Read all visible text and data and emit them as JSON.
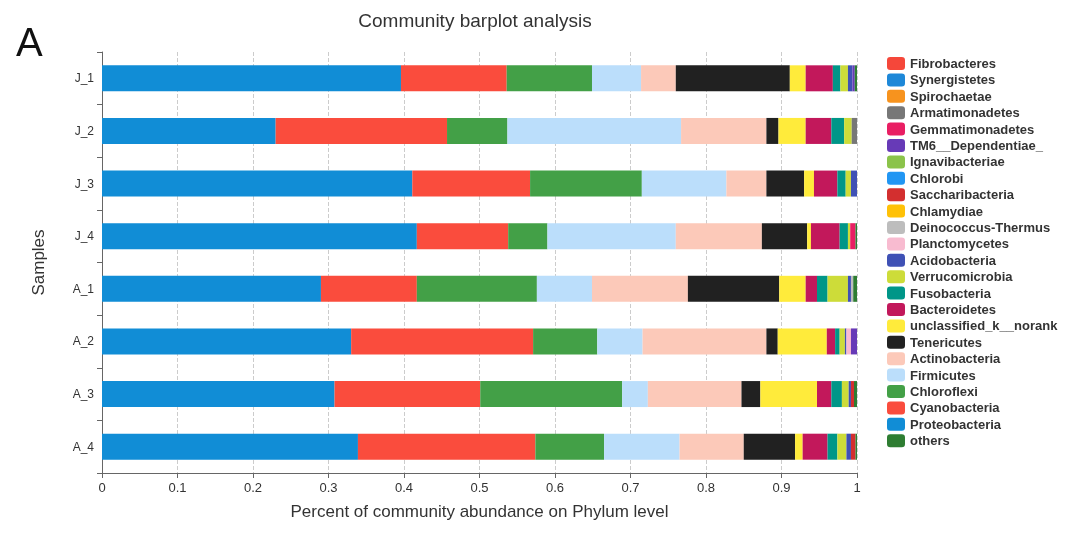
{
  "chart_data": {
    "type": "bar",
    "orientation": "horizontal",
    "stacked": true,
    "title": "Community barplot analysis",
    "xlabel": "Percent of community abundance on Phylum level",
    "ylabel": "Samples",
    "annotations": [
      "A"
    ],
    "categories": [
      "J_1",
      "J_2",
      "J_3",
      "J_4",
      "A_1",
      "A_2",
      "A_3",
      "A_4"
    ],
    "xlim": [
      0,
      1
    ],
    "xticks": [
      0,
      0.1,
      0.2,
      0.3,
      0.4,
      0.5,
      0.6,
      0.7,
      0.8,
      0.9,
      1
    ],
    "grid": "x",
    "legend": "right",
    "series": [
      {
        "name": "Proteobacteria",
        "color": "#118dd6",
        "values": [
          0.396,
          0.23,
          0.411,
          0.417,
          0.29,
          0.33,
          0.308,
          0.339
        ]
      },
      {
        "name": "Cyanobacteria",
        "color": "#fa4c3d",
        "values": [
          0.14,
          0.227,
          0.156,
          0.121,
          0.127,
          0.241,
          0.193,
          0.235
        ]
      },
      {
        "name": "Chloroflexi",
        "color": "#43a047",
        "values": [
          0.113,
          0.08,
          0.148,
          0.052,
          0.159,
          0.085,
          0.188,
          0.091
        ]
      },
      {
        "name": "Firmicutes",
        "color": "#bbdefb",
        "values": [
          0.065,
          0.23,
          0.112,
          0.17,
          0.073,
          0.06,
          0.034,
          0.1
        ]
      },
      {
        "name": "Actinobacteria",
        "color": "#fcc9b9",
        "values": [
          0.046,
          0.113,
          0.053,
          0.114,
          0.127,
          0.164,
          0.124,
          0.085
        ]
      },
      {
        "name": "Tenericutes",
        "color": "#212121",
        "values": [
          0.151,
          0.016,
          0.05,
          0.06,
          0.121,
          0.015,
          0.025,
          0.068
        ]
      },
      {
        "name": "unclassified_k__norank",
        "color": "#ffeb3b",
        "values": [
          0.021,
          0.036,
          0.013,
          0.005,
          0.035,
          0.065,
          0.075,
          0.01
        ]
      },
      {
        "name": "Bacteroidetes",
        "color": "#c2185b",
        "values": [
          0.036,
          0.034,
          0.031,
          0.038,
          0.015,
          0.011,
          0.019,
          0.033
        ]
      },
      {
        "name": "Fusobacteria",
        "color": "#009688",
        "values": [
          0.01,
          0.017,
          0.011,
          0.011,
          0.014,
          0.006,
          0.014,
          0.013
        ]
      },
      {
        "name": "Verrucomicrobia",
        "color": "#cddc39",
        "values": [
          0.01,
          0.01,
          0.007,
          0.003,
          0.027,
          0.007,
          0.009,
          0.012
        ]
      },
      {
        "name": "Acidobacteria",
        "color": "#3f51b5",
        "values": [
          0.006,
          0,
          0.008,
          0,
          0.004,
          0.002,
          0.003,
          0.006
        ]
      },
      {
        "name": "Planctomycetes",
        "color": "#f8bbd0",
        "values": [
          0,
          0,
          0,
          0,
          0,
          0.006,
          0,
          0
        ]
      },
      {
        "name": "Deinococcus-Thermus",
        "color": "#bdbdbd",
        "values": [
          0,
          0,
          0,
          0,
          0.003,
          0,
          0,
          0
        ]
      },
      {
        "name": "Chlamydiae",
        "color": "#ffc107",
        "values": [
          0,
          0,
          0,
          0,
          0,
          0,
          0,
          0
        ]
      },
      {
        "name": "Saccharibacteria",
        "color": "#d32f2f",
        "values": [
          0,
          0,
          0,
          0,
          0,
          0,
          0.004,
          0.006
        ]
      },
      {
        "name": "Chlorobi",
        "color": "#2196f3",
        "values": [
          0,
          0,
          0,
          0,
          0,
          0,
          0,
          0
        ]
      },
      {
        "name": "Ignavibacteriae",
        "color": "#8bc34a",
        "values": [
          0,
          0,
          0,
          0,
          0,
          0,
          0,
          0
        ]
      },
      {
        "name": "TM6__Dependentiae_",
        "color": "#673ab7",
        "values": [
          0.003,
          0,
          0,
          0,
          0,
          0.008,
          0,
          0
        ]
      },
      {
        "name": "Gemmatimonadetes",
        "color": "#e91e63",
        "values": [
          0,
          0,
          0,
          0.007,
          0,
          0,
          0,
          0
        ]
      },
      {
        "name": "Armatimonadetes",
        "color": "#777777",
        "values": [
          0,
          0.007,
          0,
          0,
          0,
          0,
          0,
          0
        ]
      },
      {
        "name": "Spirochaetae",
        "color": "#f7931e",
        "values": [
          0,
          0,
          0,
          0,
          0,
          0,
          0,
          0
        ]
      },
      {
        "name": "Synergistetes",
        "color": "#1e88d8",
        "values": [
          0,
          0,
          0,
          0,
          0,
          0,
          0,
          0
        ]
      },
      {
        "name": "Fibrobacteres",
        "color": "#f5473a",
        "values": [
          0,
          0,
          0,
          0,
          0,
          0,
          0,
          0
        ]
      },
      {
        "name": "others",
        "color": "#2e7d32",
        "values": [
          0.003,
          0,
          0,
          0.002,
          0.005,
          0,
          0.004,
          0.002
        ]
      }
    ]
  }
}
